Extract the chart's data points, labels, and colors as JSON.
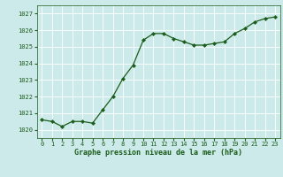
{
  "x": [
    0,
    1,
    2,
    3,
    4,
    5,
    6,
    7,
    8,
    9,
    10,
    11,
    12,
    13,
    14,
    15,
    16,
    17,
    18,
    19,
    20,
    21,
    22,
    23
  ],
  "y": [
    1020.6,
    1020.5,
    1020.2,
    1020.5,
    1020.5,
    1020.4,
    1021.2,
    1022.0,
    1023.1,
    1023.9,
    1025.4,
    1025.8,
    1025.8,
    1025.5,
    1025.3,
    1025.1,
    1025.1,
    1025.2,
    1025.3,
    1025.8,
    1026.1,
    1026.5,
    1026.7,
    1026.8
  ],
  "ylim": [
    1019.5,
    1027.5
  ],
  "xlim": [
    -0.5,
    23.5
  ],
  "yticks": [
    1020,
    1021,
    1022,
    1023,
    1024,
    1025,
    1026,
    1027
  ],
  "xticks": [
    0,
    1,
    2,
    3,
    4,
    5,
    6,
    7,
    8,
    9,
    10,
    11,
    12,
    13,
    14,
    15,
    16,
    17,
    18,
    19,
    20,
    21,
    22,
    23
  ],
  "line_color": "#1a5c1a",
  "marker_color": "#1a5c1a",
  "bg_color": "#cdeaea",
  "grid_color": "#ffffff",
  "xlabel": "Graphe pression niveau de la mer (hPa)",
  "xlabel_color": "#1a5c1a",
  "tick_color": "#1a5c1a",
  "label_fontsize": 6.0,
  "tick_fontsize": 5.0,
  "line_width": 0.9,
  "marker_size": 2.2
}
